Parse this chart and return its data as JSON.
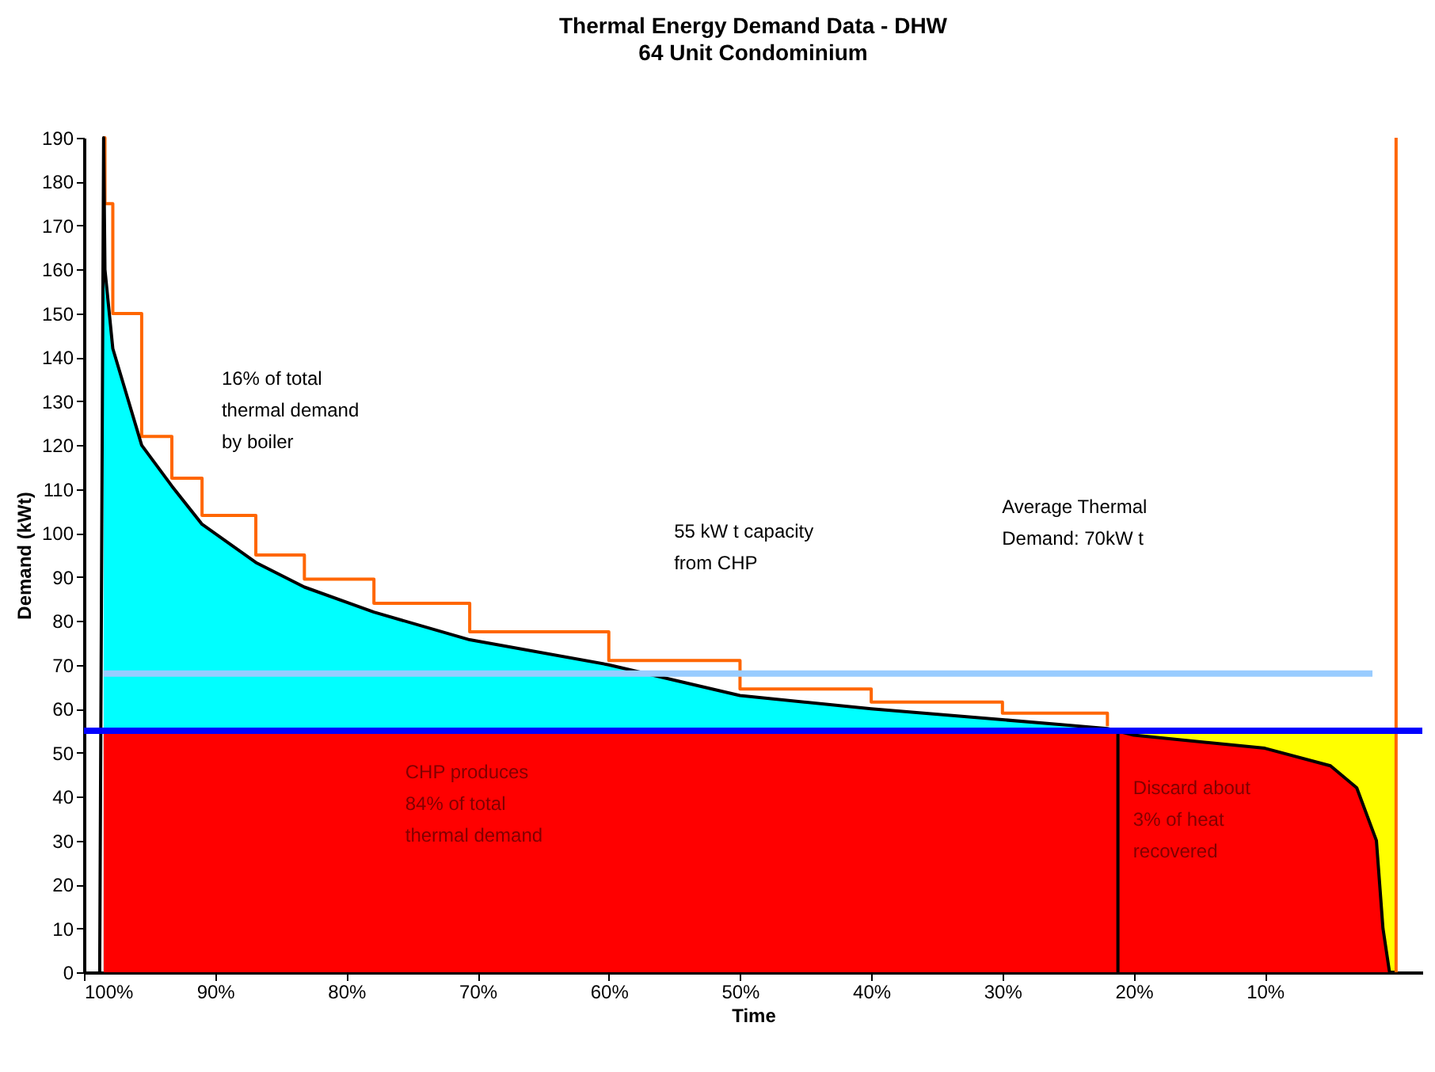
{
  "chart_data": {
    "type": "area",
    "title": "Thermal Energy Demand Data - DHW",
    "subtitle": "64 Unit Condominium",
    "xlabel": "Time",
    "ylabel": "Demand (kWt)",
    "x": [
      98.5,
      98.4,
      97.8,
      95.6,
      93.3,
      91.0,
      86.9,
      83.2,
      77.9,
      70.6,
      60,
      50,
      40,
      30,
      22,
      20,
      10,
      5,
      3,
      1.5,
      1,
      0.5,
      0
    ],
    "series": [
      {
        "color": "#ffff00",
        "x": [
          22,
          0
        ],
        "values": [
          55,
          55
        ]
      },
      {
        "color": "#00ffff",
        "x": [
          98.5,
          98.4,
          97.8,
          95.6,
          93.3,
          91.0,
          86.9,
          83.2,
          77.9,
          70.6,
          60,
          50,
          40,
          30,
          22
        ],
        "values": [
          190,
          160,
          142,
          120,
          110.7,
          102,
          93.3,
          87.7,
          82,
          75.7,
          70,
          63,
          60,
          57.5,
          55.5
        ]
      },
      {
        "color": "#ff0000",
        "values": [
          55,
          55,
          55,
          55,
          55,
          55,
          55,
          55,
          55,
          55,
          55,
          55,
          55,
          55,
          55,
          54,
          51,
          47,
          42,
          30,
          10,
          0,
          0
        ]
      },
      {
        "type": "step",
        "color": "#ff6600",
        "x": [
          98.5,
          98.4,
          97.8,
          95.6,
          93.3,
          91.0,
          86.9,
          83.2,
          77.9,
          70.6,
          60,
          50,
          40,
          30,
          22
        ],
        "values": [
          190,
          175,
          150,
          122,
          112.5,
          104,
          95,
          89.5,
          84,
          77.5,
          71,
          64.5,
          61.5,
          59,
          56
        ]
      },
      {
        "type": "line",
        "color": "#000000",
        "x": [
          98.8,
          98.5,
          98.4,
          97.8,
          95.6,
          93.3,
          91.0,
          86.9,
          83.2,
          77.9,
          70.6,
          60,
          50,
          40,
          30,
          22,
          20,
          10,
          5,
          3,
          1.5,
          1,
          0.5,
          0
        ],
        "values": [
          0,
          190,
          160,
          142,
          120,
          110.7,
          102,
          93.3,
          87.7,
          82,
          75.7,
          70,
          63,
          60,
          57.5,
          55.5,
          54,
          51,
          47,
          42,
          30,
          10,
          0,
          0
        ]
      },
      {
        "type": "line",
        "color": "#99ccff",
        "x": [
          98.5,
          1.8
        ],
        "values": [
          68,
          68
        ]
      },
      {
        "type": "line",
        "color": "#000000",
        "x": [
          21.2,
          21.2
        ],
        "values": [
          0,
          55
        ]
      },
      {
        "type": "line",
        "color": "#ff6600",
        "x": [
          0,
          0
        ],
        "values": [
          0,
          190
        ]
      }
    ],
    "ref_lines": [
      {
        "axis": "y",
        "value": 55,
        "color": "#0000ff"
      }
    ],
    "xlim": [
      100,
      -2
    ],
    "xticks": [
      {
        "value": 100,
        "label": "100%"
      },
      {
        "value": 90,
        "label": "90%"
      },
      {
        "value": 80,
        "label": "80%"
      },
      {
        "value": 70,
        "label": "70%"
      },
      {
        "value": 60,
        "label": "60%"
      },
      {
        "value": 50,
        "label": "50%"
      },
      {
        "value": 40,
        "label": "40%"
      },
      {
        "value": 30,
        "label": "30%"
      },
      {
        "value": 20,
        "label": "20%"
      },
      {
        "value": 10,
        "label": "10%"
      }
    ],
    "ylim": [
      0,
      190
    ],
    "yticks": [
      0,
      10,
      20,
      30,
      40,
      50,
      60,
      70,
      80,
      90,
      100,
      110,
      120,
      130,
      140,
      150,
      160,
      170,
      180,
      190
    ],
    "grid": false,
    "annotations": [
      "16% of total\nthermal demand\nby boiler",
      "55 kW t capacity\nfrom CHP",
      "Average Thermal\nDemand:  70kW t",
      "CHP produces\n84% of total\nthermal demand",
      "Discard about\n3% of heat\nrecovered"
    ]
  }
}
